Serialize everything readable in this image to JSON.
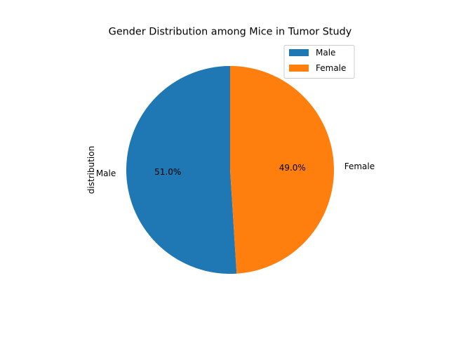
{
  "chart_data": {
    "type": "pie",
    "title": "Gender Distribution among Mice in Tumor Study",
    "ylabel": "distribution",
    "autopct_format": "{v}%",
    "slices": [
      {
        "label": "Male",
        "percent": 51.0,
        "display": "51.0",
        "color": "#1f77b4"
      },
      {
        "label": "Female",
        "percent": 49.0,
        "display": "49.0",
        "color": "#ff7f0e"
      }
    ],
    "start_angle_deg": 90,
    "direction": "counterclockwise",
    "legend": {
      "placement": "upper-right",
      "entries": [
        "Male",
        "Female"
      ]
    }
  }
}
